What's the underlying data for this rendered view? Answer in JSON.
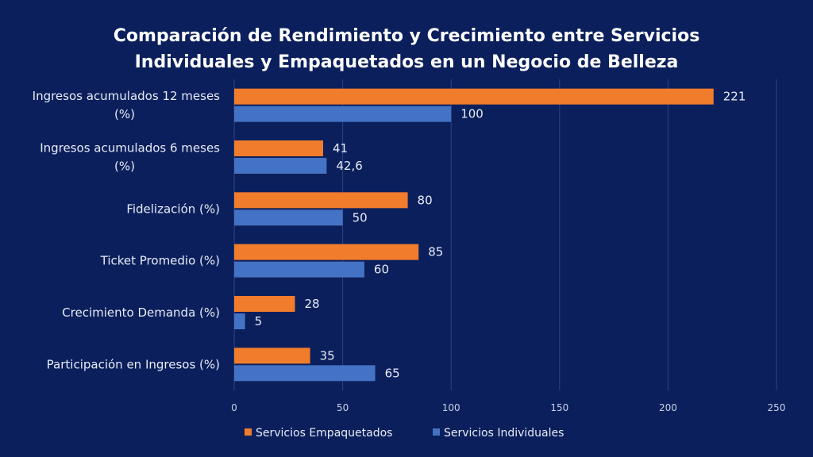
{
  "chart_data": {
    "type": "bar",
    "orientation": "horizontal",
    "title_lines": [
      "Comparación de Rendimiento y Crecimiento entre Servicios",
      "Individuales y Empaquetados en un Negocio de Belleza"
    ],
    "categories": [
      [
        "Ingresos acumulados 12 meses",
        "(%)"
      ],
      [
        "Ingresos acumulados 6 meses",
        "(%)"
      ],
      [
        "Fidelización (%)"
      ],
      [
        "Ticket Promedio (%)"
      ],
      [
        "Crecimiento Demanda (%)"
      ],
      [
        "Participación en Ingresos (%)"
      ]
    ],
    "series": [
      {
        "name": "Servicios Empaquetados",
        "color": "#f07c2c",
        "values": [
          221,
          41,
          80,
          85,
          28,
          35
        ],
        "labels": [
          "221",
          "41",
          "80",
          "85",
          "28",
          "35"
        ]
      },
      {
        "name": "Servicios Individuales",
        "color": "#4472c4",
        "values": [
          100,
          42.6,
          50,
          60,
          5,
          65
        ],
        "labels": [
          "100",
          "42,6",
          "50",
          "60",
          "5",
          "65"
        ]
      }
    ],
    "xlim": [
      0,
      250
    ],
    "xticks": [
      0,
      50,
      100,
      150,
      200,
      250
    ],
    "grid": true,
    "legend_position": "bottom-center",
    "gridline_color": "#2c4486",
    "text_color": "#e8ecf6"
  }
}
